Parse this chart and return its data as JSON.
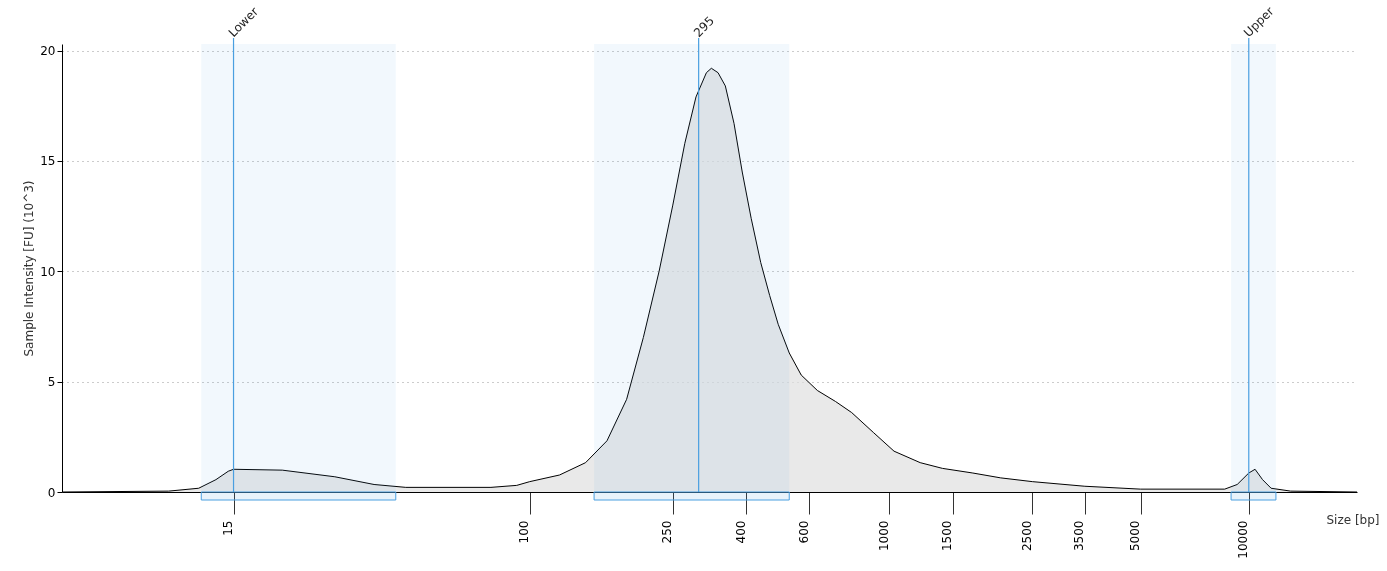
{
  "chart_data": {
    "type": "area",
    "xlabel": "Size [bp]",
    "ylabel": "Sample Intensity [FU] (10^3)",
    "xlim": [
      5,
      20000
    ],
    "xticks": [
      15,
      100,
      250,
      400,
      600,
      1000,
      1500,
      2500,
      3500,
      5000,
      10000
    ],
    "ylim": [
      0,
      20.3
    ],
    "yticks": [
      0,
      5,
      10,
      15,
      20
    ],
    "grid": "y",
    "log": "x",
    "x": [
      5,
      9.9,
      12,
      13.4,
      14.5,
      15,
      20.5,
      28.7,
      36.9,
      45.2,
      78,
      92,
      100,
      121,
      143,
      164,
      186,
      207,
      229,
      250,
      270,
      290,
      310,
      320,
      334,
      350,
      370,
      390,
      413,
      439,
      465,
      491,
      527,
      569,
      631,
      709,
      786,
      903,
      1031,
      1219,
      1406,
      1708,
      2042,
      2500,
      3500,
      5000,
      8571,
      9286,
      10000,
      10410,
      10923,
      11538,
      13077,
      20000
    ],
    "series": [
      {
        "color": "#e0e0e0",
        "values": [
          0,
          0.04,
          0.17,
          0.56,
          0.94,
          1.03,
          0.99,
          0.69,
          0.34,
          0.21,
          0.21,
          0.3,
          0.47,
          0.77,
          1.33,
          2.32,
          4.2,
          7.0,
          10.0,
          13.0,
          15.8,
          17.9,
          19.0,
          19.2,
          19.0,
          18.4,
          16.7,
          14.5,
          12.4,
          10.4,
          8.9,
          7.6,
          6.3,
          5.3,
          4.6,
          4.1,
          3.6,
          2.7,
          1.85,
          1.33,
          1.07,
          0.86,
          0.64,
          0.47,
          0.26,
          0.13,
          0.13,
          0.34,
          0.86,
          1.03,
          0.56,
          0.17,
          0.04,
          0
        ]
      }
    ],
    "ref_lines": [
      {
        "axis": "x",
        "value": 15,
        "label": "Lower",
        "color": "#4a9fe0"
      },
      {
        "axis": "x",
        "value": 295,
        "label": "295",
        "color": "#4a9fe0"
      },
      {
        "axis": "x",
        "value": 10000,
        "label": "Upper",
        "color": "#4a9fe0"
      }
    ],
    "bands": [
      {
        "axis": "x",
        "from": 12.2,
        "to": 42.4,
        "color": "#4a9fe0"
      },
      {
        "axis": "x",
        "from": 151,
        "to": 527,
        "color": "#4a9fe0"
      },
      {
        "axis": "x",
        "from": 8929,
        "to": 11900,
        "color": "#4a9fe0"
      }
    ]
  }
}
